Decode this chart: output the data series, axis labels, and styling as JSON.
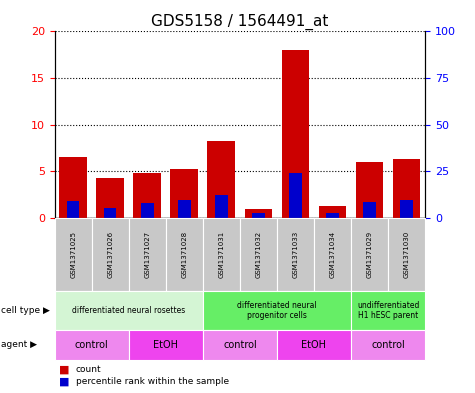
{
  "title": "GDS5158 / 1564491_at",
  "samples": [
    "GSM1371025",
    "GSM1371026",
    "GSM1371027",
    "GSM1371028",
    "GSM1371031",
    "GSM1371032",
    "GSM1371033",
    "GSM1371034",
    "GSM1371029",
    "GSM1371030"
  ],
  "red_values": [
    6.6,
    4.3,
    4.8,
    5.3,
    8.3,
    1.0,
    18.0,
    1.3,
    6.0,
    6.3
  ],
  "blue_values": [
    1.8,
    1.1,
    1.6,
    1.9,
    2.5,
    0.5,
    4.8,
    0.5,
    1.7,
    1.9
  ],
  "ylim": [
    0,
    20
  ],
  "yticks_left": [
    0,
    5,
    10,
    15,
    20
  ],
  "yticks_right": [
    0,
    25,
    50,
    75,
    100
  ],
  "cell_type_groups": [
    {
      "label": "differentiated neural rosettes",
      "start": 0,
      "end": 4,
      "color": "#d4f5d4"
    },
    {
      "label": "differentiated neural\nprogenitor cells",
      "start": 4,
      "end": 8,
      "color": "#66ee66"
    },
    {
      "label": "undifferentiated\nH1 hESC parent",
      "start": 8,
      "end": 10,
      "color": "#66ee66"
    }
  ],
  "agent_groups": [
    {
      "label": "control",
      "start": 0,
      "end": 2,
      "color": "#ee88ee"
    },
    {
      "label": "EtOH",
      "start": 2,
      "end": 4,
      "color": "#ee44ee"
    },
    {
      "label": "control",
      "start": 4,
      "end": 6,
      "color": "#ee88ee"
    },
    {
      "label": "EtOH",
      "start": 6,
      "end": 8,
      "color": "#ee44ee"
    },
    {
      "label": "control",
      "start": 8,
      "end": 10,
      "color": "#ee88ee"
    }
  ],
  "red_color": "#cc0000",
  "blue_color": "#0000cc",
  "bar_width": 0.75,
  "sample_bg_color": "#c8c8c8",
  "title_fontsize": 11,
  "tick_fontsize": 8,
  "label_fontsize": 7
}
